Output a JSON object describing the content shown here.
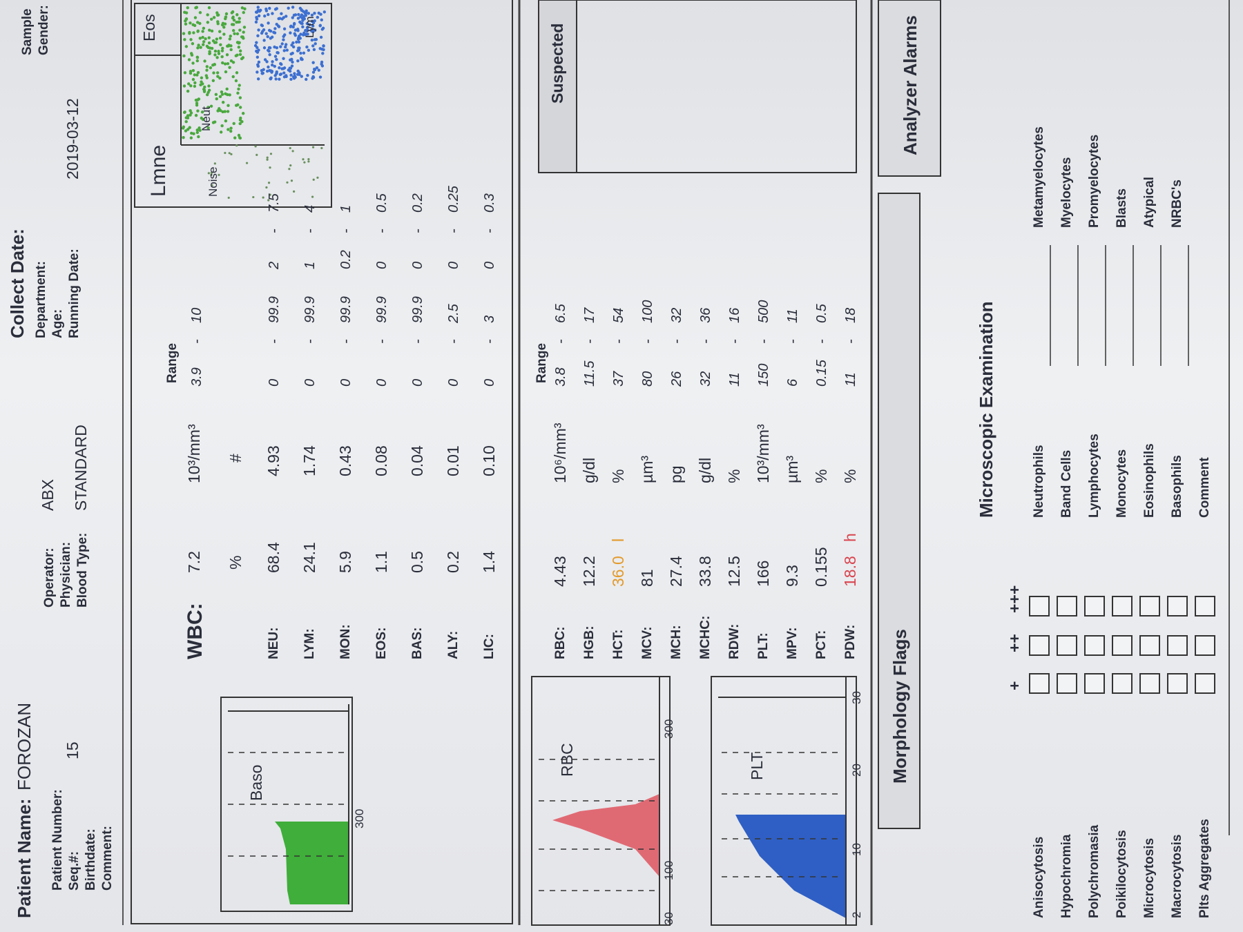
{
  "header": {
    "patient_name_label": "Patient Name:",
    "patient_name": "FOROZAN",
    "collect_date_label": "Collect Date:",
    "col1": [
      {
        "label": "Patient Number:"
      },
      {
        "label": "Seq.#:",
        "value": "15"
      },
      {
        "label": "Birthdate:"
      },
      {
        "label": "Comment:"
      }
    ],
    "col2": [
      {
        "label": "Operator:",
        "value": "ABX"
      },
      {
        "label": "Physician:"
      },
      {
        "label": "Blood Type:",
        "value": "STANDARD"
      }
    ],
    "col3": [
      {
        "label": "Department:"
      },
      {
        "label": "Age:"
      },
      {
        "label": "Running Date:",
        "value": "2019-03-12"
      }
    ],
    "col4": [
      {
        "label": "Sample"
      },
      {
        "label": "Gender:"
      }
    ]
  },
  "wbc": {
    "label": "WBC:",
    "value": "7.2",
    "unit": "10³/mm³",
    "range_label": "Range",
    "range": [
      "3.9",
      "10"
    ],
    "separator": "-",
    "pct_header": "%",
    "abs_header": "#",
    "rows": [
      {
        "name": "NEU:",
        "pct": "68.4",
        "abs": "4.93",
        "pct_range": [
          "0",
          "99.9"
        ],
        "abs_range": [
          "2",
          "7.5"
        ]
      },
      {
        "name": "LYM:",
        "pct": "24.1",
        "abs": "1.74",
        "pct_range": [
          "0",
          "99.9"
        ],
        "abs_range": [
          "1",
          "4"
        ]
      },
      {
        "name": "MON:",
        "pct": "5.9",
        "abs": "0.43",
        "pct_range": [
          "0",
          "99.9"
        ],
        "abs_range": [
          "0.2",
          "1"
        ]
      },
      {
        "name": "EOS:",
        "pct": "1.1",
        "abs": "0.08",
        "pct_range": [
          "0",
          "99.9"
        ],
        "abs_range": [
          "0",
          "0.5"
        ]
      },
      {
        "name": "BAS:",
        "pct": "0.5",
        "abs": "0.04",
        "pct_range": [
          "0",
          "99.9"
        ],
        "abs_range": [
          "0",
          "0.2"
        ]
      },
      {
        "name": "ALY:",
        "pct": "0.2",
        "abs": "0.01",
        "pct_range": [
          "0",
          "2.5"
        ],
        "abs_range": [
          "0",
          "0.25"
        ]
      },
      {
        "name": "LIC:",
        "pct": "1.4",
        "abs": "0.10",
        "pct_range": [
          "0",
          "3"
        ],
        "abs_range": [
          "0",
          "0.3"
        ]
      }
    ],
    "baso_histogram": {
      "label": "Baso",
      "axis": [
        "300"
      ]
    },
    "scatter": {
      "labels": [
        "Lmne",
        "Noise",
        "Neut",
        "Lym",
        "Eos"
      ]
    }
  },
  "rbc": {
    "range_label": "Range",
    "separator": "-",
    "rows": [
      {
        "name": "RBC:",
        "value": "4.43",
        "unit": "10⁶/mm³",
        "range": [
          "3.8",
          "6.5"
        ]
      },
      {
        "name": "HGB:",
        "value": "12.2",
        "unit": "g/dl",
        "range": [
          "11.5",
          "17"
        ]
      },
      {
        "name": "HCT:",
        "value": "36.0",
        "flag": "l",
        "unit": "%",
        "range": [
          "37",
          "54"
        ]
      },
      {
        "name": "MCV:",
        "value": "81",
        "unit": "µm³",
        "range": [
          "80",
          "100"
        ]
      },
      {
        "name": "MCH:",
        "value": "27.4",
        "unit": "pg",
        "range": [
          "26",
          "32"
        ]
      },
      {
        "name": "MCHC:",
        "value": "33.8",
        "unit": "g/dl",
        "range": [
          "32",
          "36"
        ]
      },
      {
        "name": "RDW:",
        "value": "12.5",
        "unit": "%",
        "range": [
          "11",
          "16"
        ]
      },
      {
        "name": "PLT:",
        "value": "166",
        "unit": "10³/mm³",
        "range": [
          "150",
          "500"
        ]
      },
      {
        "name": "MPV:",
        "value": "9.3",
        "unit": "µm³",
        "range": [
          "6",
          "11"
        ]
      },
      {
        "name": "PCT:",
        "value": "0.155",
        "unit": "%",
        "range": [
          "0.15",
          "0.5"
        ]
      },
      {
        "name": "PDW:",
        "value": "18.8",
        "flag": "h",
        "unit": "%",
        "range": [
          "11",
          "18"
        ]
      }
    ],
    "rbc_histogram": {
      "label": "RBC",
      "axis": [
        "30",
        "100",
        "300"
      ]
    },
    "plt_histogram": {
      "label": "PLT",
      "axis": [
        "2",
        "10",
        "20",
        "30"
      ]
    },
    "suspected_title": "Suspected"
  },
  "morphology": {
    "title": "Morphology Flags",
    "grades": [
      "+",
      "++",
      "+++"
    ],
    "items": [
      "Anisocytosis",
      "Hypochromia",
      "Polychromasia",
      "Poikilocytosis",
      "Microcytosis",
      "Macrocytosis",
      "Plts Aggregates"
    ]
  },
  "alarms": {
    "title": "Analyzer Alarms"
  },
  "microscopic": {
    "title": "Microscopic Examination",
    "left": [
      "Neutrophils",
      "Band Cells",
      "Lymphocytes",
      "Monocytes",
      "Eosinophils",
      "Basophils",
      "Comment"
    ],
    "right": [
      "Metamyelocytes",
      "Myelocytes",
      "Promyelocytes",
      "Blasts",
      "Atypical",
      "NRBC's"
    ]
  }
}
